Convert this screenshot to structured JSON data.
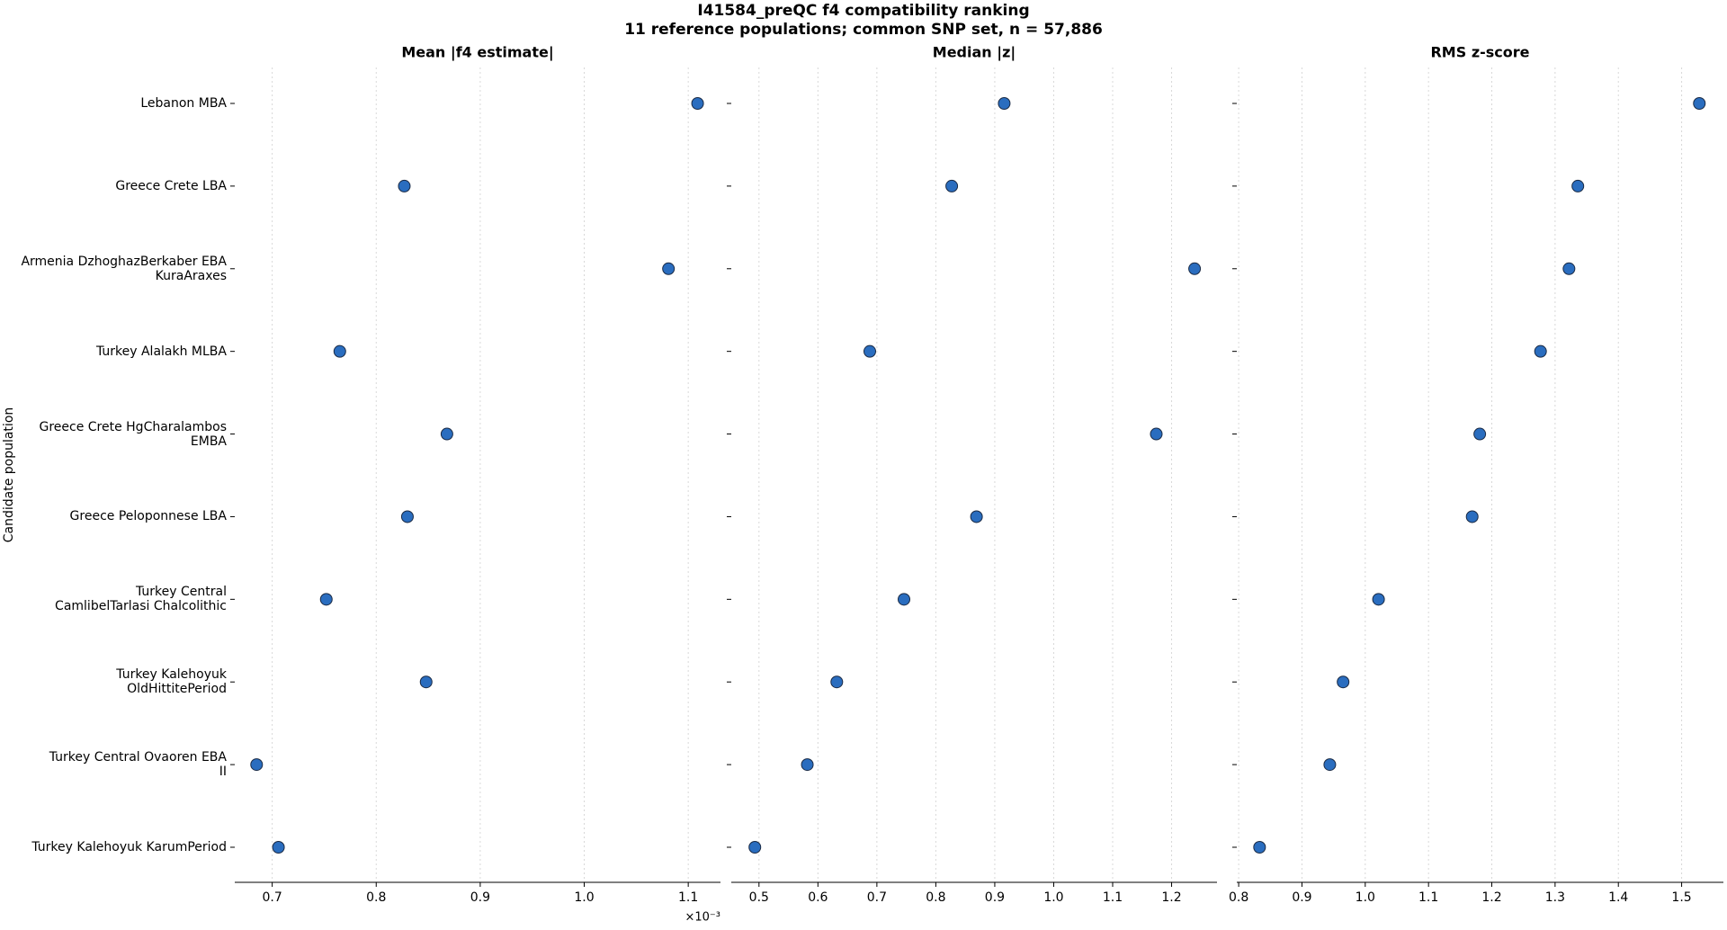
{
  "title": "I41584_preQC f4 compatibility ranking",
  "subtitle": "11 reference populations; common SNP set, n = 57,886",
  "y_label": "Candidate population",
  "categories": [
    "Lebanon MBA",
    "Greece Crete LBA",
    "Armenia DzhoghazBerkaber EBA\nKuraAraxes",
    "Turkey Alalakh MLBA",
    "Greece Crete HgCharalambos\nEMBA",
    "Greece Peloponnese LBA",
    "Turkey Central\nCamlibelTarlasi Chalcolithic",
    "Turkey Kalehoyuk\nOldHittitePeriod",
    "Turkey Central Ovaoren EBA\nII",
    "Turkey Kalehoyuk KarumPeriod"
  ],
  "chart_data": [
    {
      "type": "scatter",
      "title": "Mean |f4 estimate|",
      "x_offset_label": "×10⁻³",
      "values": [
        1.109,
        0.827,
        1.081,
        0.765,
        0.868,
        0.83,
        0.752,
        0.848,
        0.685,
        0.706
      ],
      "xlim": [
        0.664,
        1.131
      ],
      "xticks": [
        0.7,
        0.8,
        0.9,
        {
          "value": 1,
          "label": "1.0"
        },
        1.1
      ],
      "grid": true,
      "color": "#2a6dbf",
      "edgecolor": "#1a2a44"
    },
    {
      "type": "scatter",
      "title": "Median |z|",
      "values": [
        0.916,
        0.827,
        1.239,
        0.688,
        1.174,
        0.869,
        0.746,
        0.632,
        0.582,
        0.493
      ],
      "xlim": [
        0.453,
        1.277
      ],
      "xticks": [
        0.5,
        0.6,
        0.7,
        0.8,
        0.9,
        {
          "value": 1,
          "label": "1.0"
        },
        1.1,
        1.2
      ],
      "grid": true,
      "color": "#2a6dbf",
      "edgecolor": "#1a2a44"
    },
    {
      "type": "scatter",
      "title": "RMS z-score",
      "values": [
        1.528,
        1.336,
        1.322,
        1.277,
        1.181,
        1.169,
        1.021,
        0.965,
        0.944,
        0.833
      ],
      "xlim": [
        0.797,
        1.566
      ],
      "xticks": [
        0.8,
        0.9,
        {
          "value": 1,
          "label": "1.0"
        },
        1.1,
        1.2,
        1.3,
        1.4,
        1.5
      ],
      "grid": true,
      "color": "#2a6dbf",
      "edgecolor": "#1a2a44"
    }
  ]
}
